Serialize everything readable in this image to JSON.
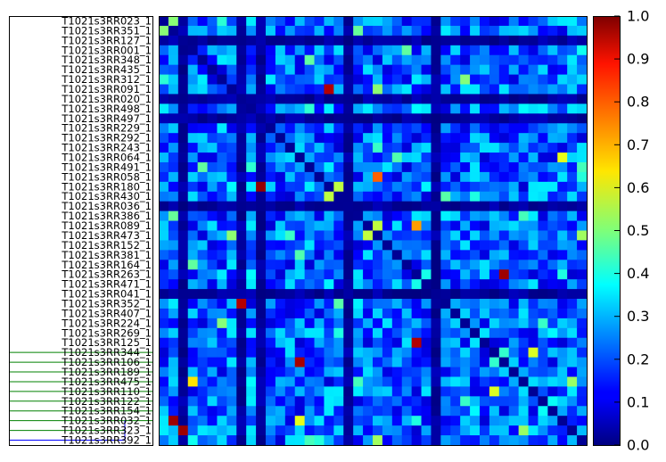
{
  "chart_data": {
    "type": "heatmap",
    "title": "",
    "xlabel": "",
    "ylabel": "",
    "grid": false,
    "row_labels": [
      "T1021s3RR023_1",
      "T1021s3RR351_1",
      "T1021s3RR127_1",
      "T1021s3RR001_1",
      "T1021s3RR348_1",
      "T1021s3RR435_1",
      "T1021s3RR312_1",
      "T1021s3RR091_1",
      "T1021s3RR020_1",
      "T1021s3RR498_1",
      "T1021s3RR497_1",
      "T1021s3RR229_1",
      "T1021s3RR292_1",
      "T1021s3RR243_1",
      "T1021s3RR064_1",
      "T1021s3RR491_1",
      "T1021s3RR058_1",
      "T1021s3RR180_1",
      "T1021s3RR430_1",
      "T1021s3RR036_1",
      "T1021s3RR386_1",
      "T1021s3RR089_1",
      "T1021s3RR473_1",
      "T1021s3RR152_1",
      "T1021s3RR381_1",
      "T1021s3RR164_1",
      "T1021s3RR263_1",
      "T1021s3RR471_1",
      "T1021s3RR041_1",
      "T1021s3RR352_1",
      "T1021s3RR407_1",
      "T1021s3RR224_1",
      "T1021s3RR269_1",
      "T1021s3RR125_1",
      "T1021s3RR344_1",
      "T1021s3RR106_1",
      "T1021s3RR189_1",
      "T1021s3RR475_1",
      "T1021s3RR110_1",
      "T1021s3RR122_1",
      "T1021s3RR154_1",
      "T1021s3RR032_1",
      "T1021s3RR323_1",
      "T1021s3RR392_1"
    ],
    "colorbar": {
      "colormap": "jet",
      "range": [
        0.0,
        1.0
      ],
      "ticks": [
        "0.0",
        "0.1",
        "0.2",
        "0.3",
        "0.4",
        "0.5",
        "0.6",
        "0.7",
        "0.8",
        "0.9",
        "1.0"
      ]
    },
    "dendrogram_colors": [
      "#008000",
      "#0000ff"
    ],
    "notable_cells": [
      {
        "row": "T1021s3RR091_1",
        "col": 17,
        "value": 0.95
      },
      {
        "row": "T1021s3RR058_1",
        "col": 22,
        "value": 0.78
      },
      {
        "row": "T1021s3RR180_1",
        "col": 10,
        "value": 0.98
      },
      {
        "row": "T1021s3RR089_1",
        "col": 26,
        "value": 0.72
      },
      {
        "row": "T1021s3RR263_1",
        "col": 35,
        "value": 0.97
      },
      {
        "row": "T1021s3RR352_1",
        "col": 8,
        "value": 0.95
      },
      {
        "row": "T1021s3RR125_1",
        "col": 26,
        "value": 0.95
      },
      {
        "row": "T1021s3RR106_1",
        "col": 14,
        "value": 0.96
      },
      {
        "row": "T1021s3RR475_1",
        "col": 3,
        "value": 0.65
      },
      {
        "row": "T1021s3RR032_1",
        "col": 1,
        "value": 0.97
      },
      {
        "row": "T1021s3RR323_1",
        "col": 2,
        "value": 0.97
      }
    ]
  }
}
